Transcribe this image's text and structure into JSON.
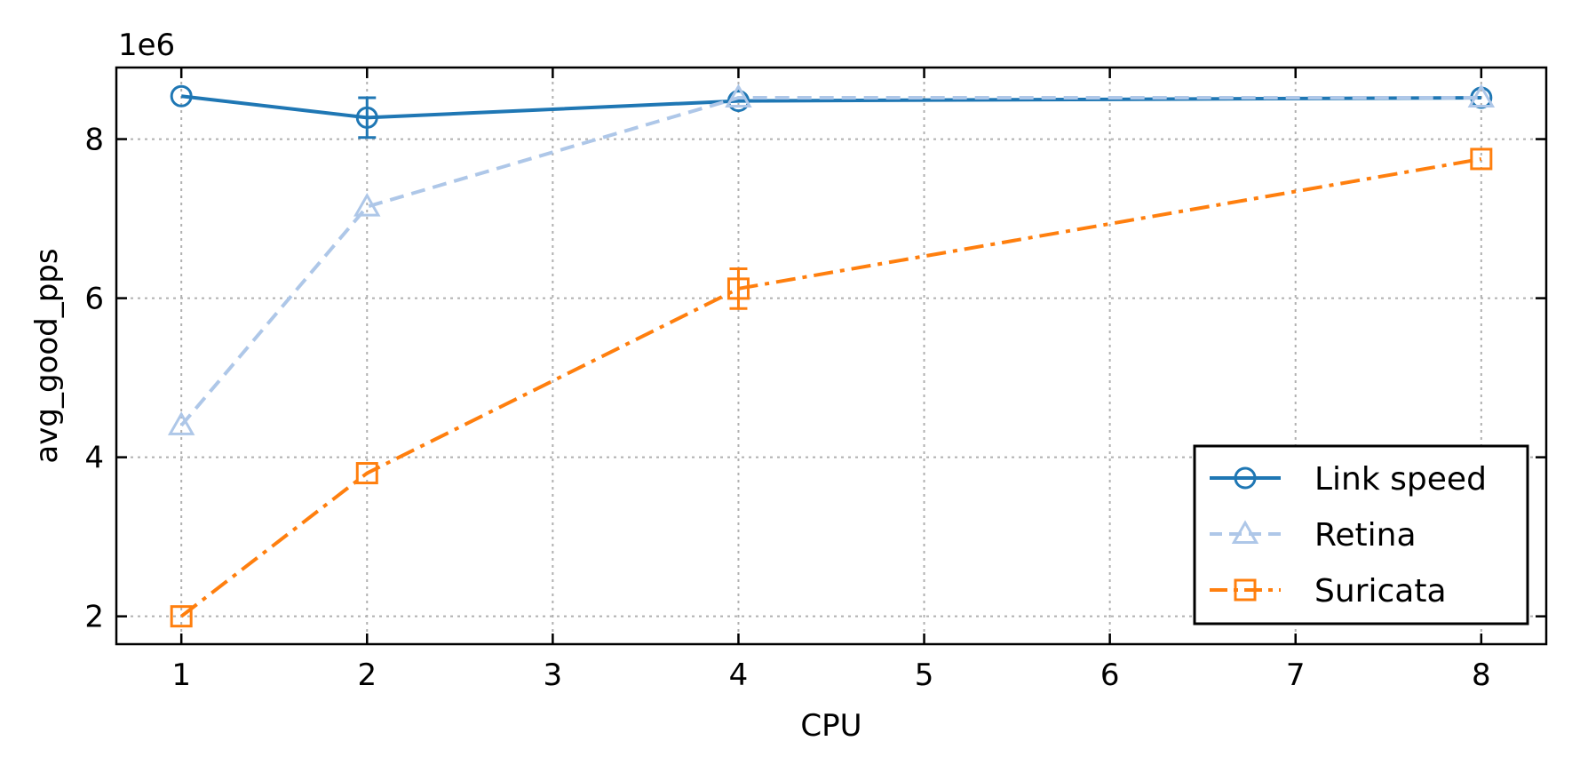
{
  "chart_data": {
    "type": "line",
    "xlabel": "CPU",
    "ylabel": "avg_good_pps",
    "y_offset_label": "1e6",
    "x_ticks": [
      1,
      2,
      3,
      4,
      5,
      6,
      7,
      8
    ],
    "y_ticks": [
      2,
      4,
      6,
      8
    ],
    "x_tick_labels": [
      "1",
      "2",
      "3",
      "4",
      "5",
      "6",
      "7",
      "8"
    ],
    "y_tick_labels": [
      "2",
      "4",
      "6",
      "8"
    ],
    "xlim": [
      0.65,
      8.35
    ],
    "ylim": [
      1.65,
      8.9
    ],
    "y_unit_scale": 1000000,
    "grid": true,
    "legend_position": "bottom-right",
    "x": [
      1,
      2,
      4,
      8
    ],
    "series": [
      {
        "name": "Link speed",
        "values": [
          8.54,
          8.27,
          8.48,
          8.52
        ],
        "errors": [
          0,
          0.25,
          0,
          0
        ],
        "color": "#1f77b4",
        "line_style": "solid",
        "marker": "circle"
      },
      {
        "name": "Retina",
        "values": [
          4.4,
          7.15,
          8.52,
          8.52
        ],
        "errors": [
          0,
          0,
          0,
          0
        ],
        "color": "#aec7e8",
        "line_style": "dashed",
        "marker": "triangle"
      },
      {
        "name": "Suricata",
        "values": [
          2.0,
          3.8,
          6.12,
          7.75
        ],
        "errors": [
          0,
          0,
          0.25,
          0
        ],
        "color": "#ff7f0e",
        "line_style": "dashdot",
        "marker": "square"
      }
    ]
  }
}
